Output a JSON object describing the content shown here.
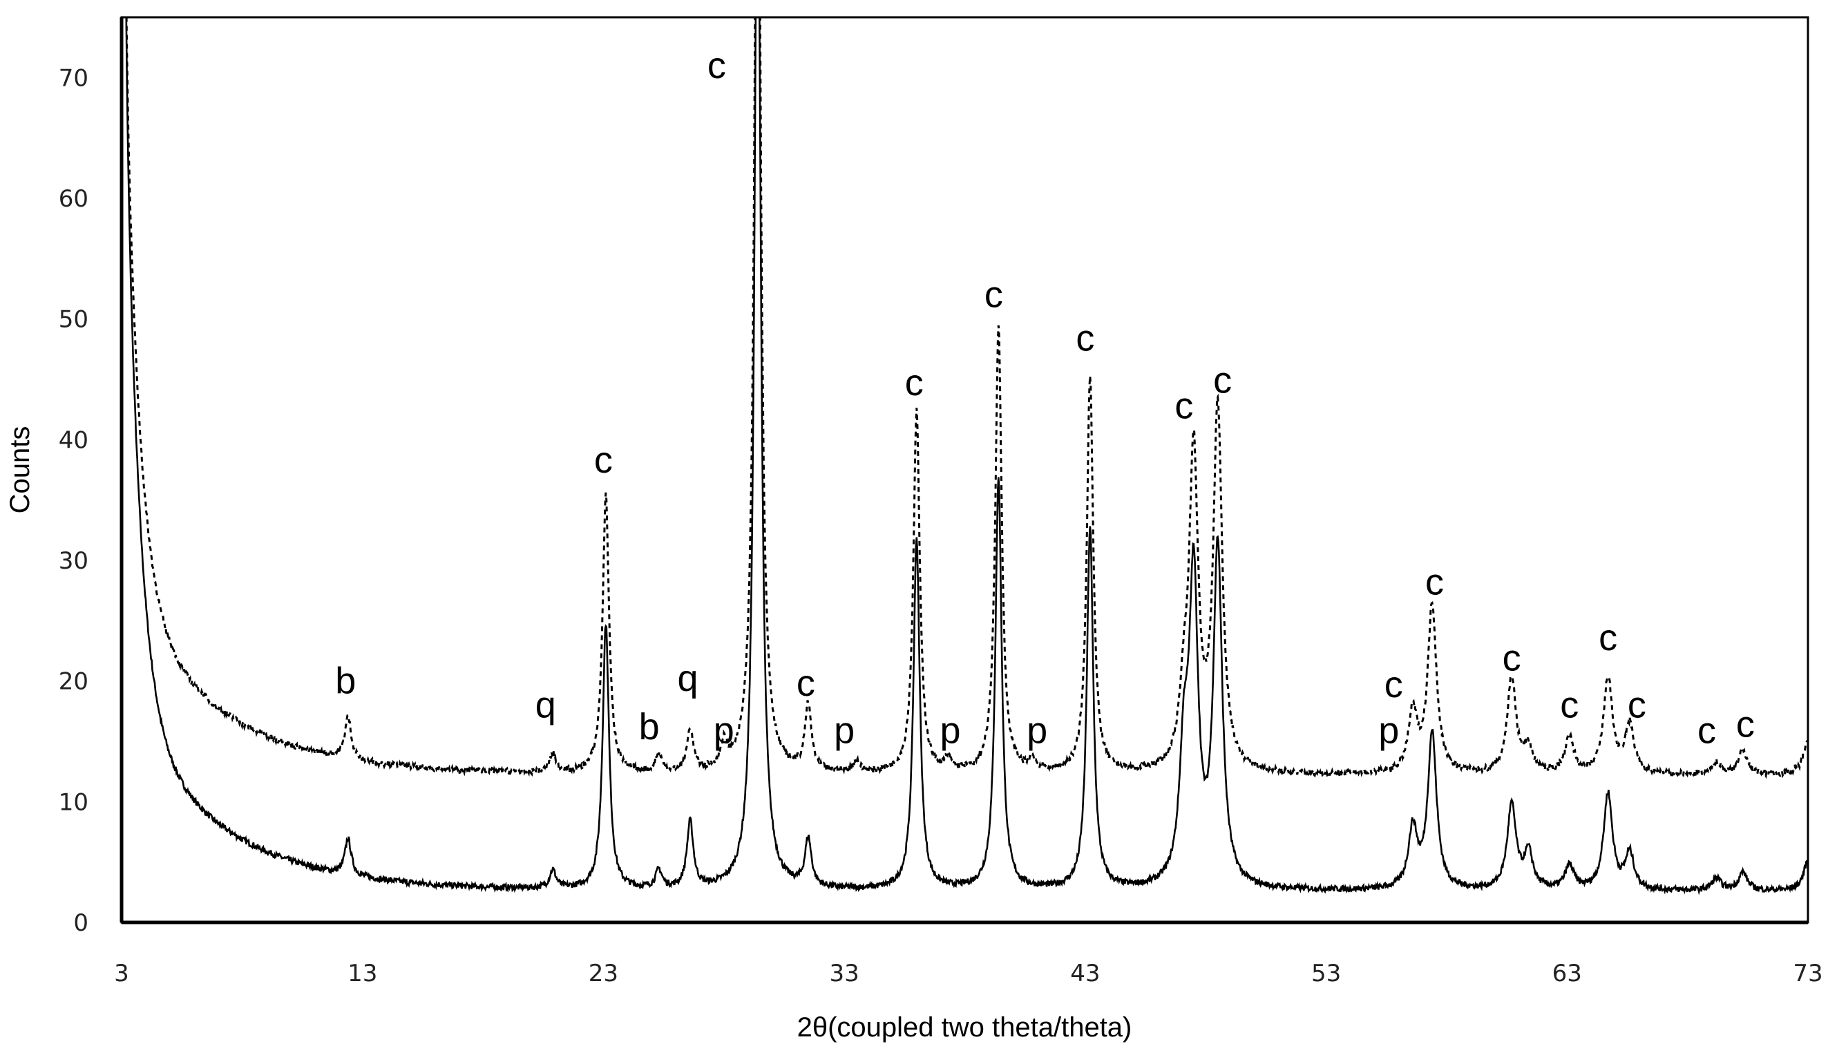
{
  "chart_data": {
    "type": "line",
    "title": "",
    "xlabel": "2θ(coupled two theta/theta)",
    "ylabel": "Counts",
    "xlim": [
      3,
      73
    ],
    "ylim": [
      0,
      75
    ],
    "xticks": [
      "3",
      "13",
      "23",
      "33",
      "43",
      "53",
      "63",
      "73"
    ],
    "yticks": [
      "0",
      "10",
      "20",
      "30",
      "40",
      "50",
      "60",
      "70"
    ],
    "grid": false,
    "legend": "none",
    "series": [
      {
        "name": "solid",
        "style": "solid",
        "color": "#000000",
        "baseline": {
          "far": 2.6,
          "amp": 72,
          "decay": 0.55,
          "amp2": 16,
          "decay2": 0.12
        },
        "peaks": [
          [
            12.4,
            3
          ],
          [
            20.9,
            1.5
          ],
          [
            23.1,
            22
          ],
          [
            25.3,
            1.5
          ],
          [
            26.6,
            5.5
          ],
          [
            29.4,
            90
          ],
          [
            31.5,
            4
          ],
          [
            36.0,
            29
          ],
          [
            39.4,
            34
          ],
          [
            43.2,
            30
          ],
          [
            47.1,
            10
          ],
          [
            47.5,
            25
          ],
          [
            48.5,
            28
          ],
          [
            56.6,
            5
          ],
          [
            57.4,
            13
          ],
          [
            60.7,
            7
          ],
          [
            61.4,
            3
          ],
          [
            63.1,
            2
          ],
          [
            64.7,
            8
          ],
          [
            65.6,
            3
          ],
          [
            69.2,
            1
          ],
          [
            70.3,
            1.5
          ],
          [
            73.0,
            2.5
          ]
        ]
      },
      {
        "name": "dashed",
        "style": "dashed",
        "color": "#000000",
        "baseline": {
          "far": 12.2,
          "amp": 62,
          "decay": 0.55,
          "amp2": 16,
          "decay2": 0.12
        },
        "peaks": [
          [
            12.4,
            3.5
          ],
          [
            20.9,
            1.5
          ],
          [
            23.1,
            23
          ],
          [
            25.3,
            1.5
          ],
          [
            26.6,
            3.5
          ],
          [
            28.0,
            2
          ],
          [
            29.4,
            90
          ],
          [
            31.5,
            5.5
          ],
          [
            33.5,
            1
          ],
          [
            36.0,
            30
          ],
          [
            37.3,
            1
          ],
          [
            39.4,
            37
          ],
          [
            40.8,
            1
          ],
          [
            43.2,
            33
          ],
          [
            47.1,
            5
          ],
          [
            47.5,
            26
          ],
          [
            48.5,
            30
          ],
          [
            56.6,
            5
          ],
          [
            57.4,
            14
          ],
          [
            60.7,
            8
          ],
          [
            61.4,
            2
          ],
          [
            63.1,
            3
          ],
          [
            64.7,
            8
          ],
          [
            65.6,
            4
          ],
          [
            69.2,
            1
          ],
          [
            70.3,
            2
          ],
          [
            73.0,
            3
          ]
        ]
      }
    ],
    "annotations": [
      {
        "text": "c",
        "x": 27.7,
        "y": 71
      },
      {
        "text": "c",
        "x": 23.0,
        "y": 38.3
      },
      {
        "text": "b",
        "x": 12.3,
        "y": 20
      },
      {
        "text": "q",
        "x": 20.6,
        "y": 18
      },
      {
        "text": "q",
        "x": 26.5,
        "y": 20.2
      },
      {
        "text": "b",
        "x": 24.9,
        "y": 16.2
      },
      {
        "text": "p",
        "x": 28.0,
        "y": 15.9
      },
      {
        "text": "c",
        "x": 31.4,
        "y": 19.8
      },
      {
        "text": "p",
        "x": 33.0,
        "y": 15.9
      },
      {
        "text": "c",
        "x": 35.9,
        "y": 44.7
      },
      {
        "text": "p",
        "x": 37.4,
        "y": 15.9
      },
      {
        "text": "c",
        "x": 39.2,
        "y": 52
      },
      {
        "text": "p",
        "x": 41.0,
        "y": 15.9
      },
      {
        "text": "c",
        "x": 43.0,
        "y": 48.4
      },
      {
        "text": "c",
        "x": 47.1,
        "y": 42.8
      },
      {
        "text": "c",
        "x": 48.7,
        "y": 44.9
      },
      {
        "text": "c",
        "x": 55.8,
        "y": 19.7
      },
      {
        "text": "p",
        "x": 55.6,
        "y": 15.9
      },
      {
        "text": "c",
        "x": 57.5,
        "y": 28.2
      },
      {
        "text": "c",
        "x": 60.7,
        "y": 21.9
      },
      {
        "text": "c",
        "x": 63.1,
        "y": 18
      },
      {
        "text": "c",
        "x": 64.7,
        "y": 23.6
      },
      {
        "text": "c",
        "x": 65.9,
        "y": 18
      },
      {
        "text": "c",
        "x": 68.8,
        "y": 15.9
      },
      {
        "text": "c",
        "x": 70.4,
        "y": 16.4
      }
    ]
  }
}
